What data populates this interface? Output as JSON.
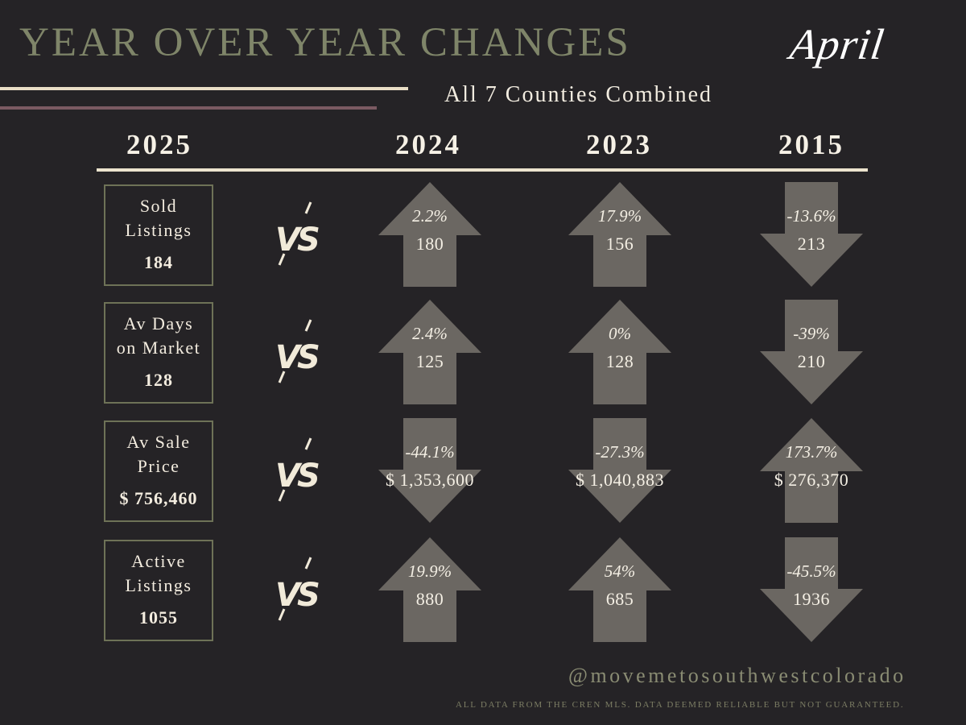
{
  "header": {
    "title": "YEAR OVER YEAR CHANGES",
    "month": "April",
    "subtitle": "All 7 Counties Combined"
  },
  "columns": {
    "current_year": "2025",
    "compare_years": [
      "2024",
      "2023",
      "2015"
    ]
  },
  "colors": {
    "background": "#252326",
    "title": "#7f8569",
    "arrow_fill": "#6b6762",
    "box_border": "#6e7257",
    "rule_cream": "#e9dec6",
    "rule_mauve": "#7b5a62"
  },
  "vs_label": "VS",
  "rows": [
    {
      "label": "Sold\nListings",
      "value": "184",
      "comparisons": [
        {
          "direction": "up",
          "pct": "2.2%",
          "value": "180"
        },
        {
          "direction": "up",
          "pct": "17.9%",
          "value": "156"
        },
        {
          "direction": "down",
          "pct": "-13.6%",
          "value": "213"
        }
      ]
    },
    {
      "label": "Av Days\non Market",
      "value": "128",
      "comparisons": [
        {
          "direction": "up",
          "pct": "2.4%",
          "value": "125"
        },
        {
          "direction": "up",
          "pct": "0%",
          "value": "128"
        },
        {
          "direction": "down",
          "pct": "-39%",
          "value": "210"
        }
      ]
    },
    {
      "label": "Av Sale\nPrice",
      "value": "$ 756,460",
      "comparisons": [
        {
          "direction": "down",
          "pct": "-44.1%",
          "value": "$ 1,353,600"
        },
        {
          "direction": "down",
          "pct": "-27.3%",
          "value": "$ 1,040,883"
        },
        {
          "direction": "up",
          "pct": "173.7%",
          "value": "$ 276,370"
        }
      ]
    },
    {
      "label": "Active\nListings",
      "value": "1055",
      "comparisons": [
        {
          "direction": "up",
          "pct": "19.9%",
          "value": "880"
        },
        {
          "direction": "up",
          "pct": "54%",
          "value": "685"
        },
        {
          "direction": "down",
          "pct": "-45.5%",
          "value": "1936"
        }
      ]
    }
  ],
  "footer": {
    "handle": "@movemetosouthwestcolorado",
    "disclaimer": "ALL DATA FROM THE CREN MLS. DATA DEEMED RELIABLE BUT NOT GUARANTEED."
  }
}
